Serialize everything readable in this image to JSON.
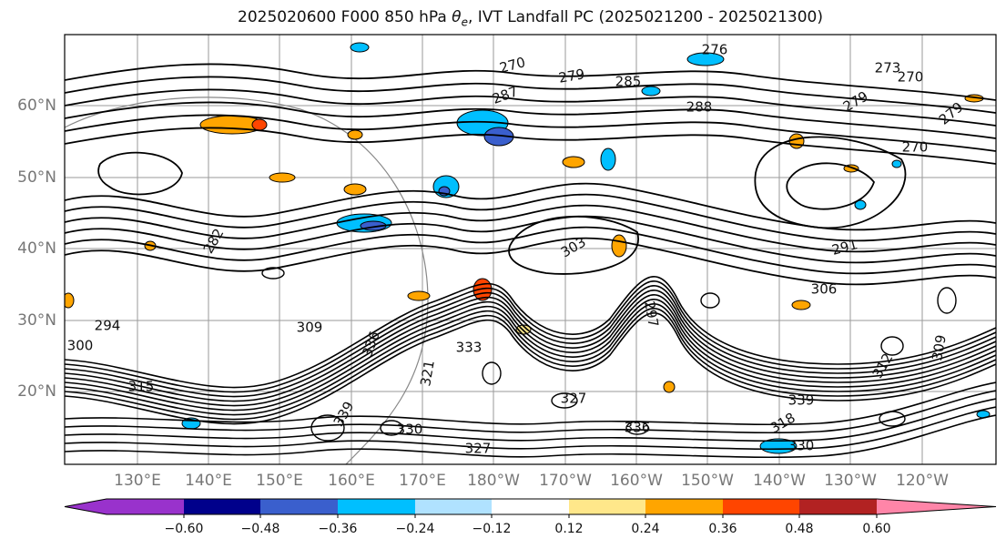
{
  "title": {
    "prefix": "2025020600 F000 850 hPa ",
    "symbol": "θ",
    "subscript": "e",
    "suffix": ", IVT Landfall PC (2025021200 - 2025021300)"
  },
  "axes": {
    "lat_labels": [
      "60°N",
      "50°N",
      "40°N",
      "30°N",
      "20°N"
    ],
    "lon_labels": [
      "130°E",
      "140°E",
      "150°E",
      "160°E",
      "170°E",
      "180°W",
      "170°W",
      "160°W",
      "150°W",
      "140°W",
      "130°W",
      "120°W"
    ]
  },
  "contour_labels": [
    "270",
    "279",
    "285",
    "276",
    "287",
    "288",
    "279",
    "273",
    "270",
    "279",
    "270",
    "282",
    "303",
    "291",
    "306",
    "297",
    "294",
    "309",
    "300",
    "333",
    "336",
    "315",
    "330",
    "339",
    "327",
    "330",
    "309",
    "318",
    "321",
    "339",
    "336",
    "327",
    "312"
  ],
  "colorbar": {
    "colors": [
      "#9932cc",
      "#00008b",
      "#3a5fcd",
      "#00bfff",
      "#b0e2ff",
      "#ffffff",
      "#ffe78a",
      "#ffa500",
      "#ff4500",
      "#b22222",
      "#ff85a8"
    ],
    "ticks": [
      "−0.60",
      "−0.48",
      "−0.36",
      "−0.24",
      "−0.12",
      "0.12",
      "0.24",
      "0.36",
      "0.48",
      "0.60"
    ]
  }
}
